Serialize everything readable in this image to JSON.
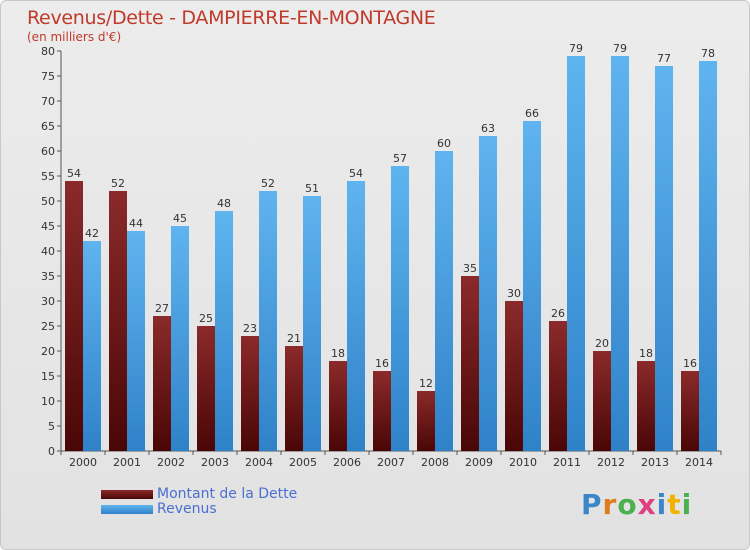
{
  "header": {
    "title": "Revenus/Dette - DAMPIERRE-EN-MONTAGNE",
    "subtitle": "(en milliers d'€)"
  },
  "legend": {
    "items": [
      {
        "label": "Montant de la Dette",
        "color": "#7a1a1a"
      },
      {
        "label": "Revenus",
        "color": "#4ea6e6"
      }
    ]
  },
  "logo": {
    "text": "Proxiti",
    "colors": [
      "#3a86c8",
      "#e07b1f",
      "#4caf50",
      "#e04080",
      "#3a86c8",
      "#f0b400",
      "#4caf50"
    ]
  },
  "chart_data": {
    "type": "bar",
    "title": "Revenus/Dette - DAMPIERRE-EN-MONTAGNE",
    "subtitle": "(en milliers d'€)",
    "xlabel": "",
    "ylabel": "",
    "ylim": [
      0,
      80
    ],
    "yticks": [
      0,
      5,
      10,
      15,
      20,
      25,
      30,
      35,
      40,
      45,
      50,
      55,
      60,
      65,
      70,
      75,
      80
    ],
    "grid": false,
    "legend_position": "bottom-left",
    "categories": [
      "2000",
      "2001",
      "2002",
      "2003",
      "2004",
      "2005",
      "2006",
      "2007",
      "2008",
      "2009",
      "2010",
      "2011",
      "2012",
      "2013",
      "2014"
    ],
    "series": [
      {
        "name": "Montant de la Dette",
        "color": "#7a1a1a",
        "values": [
          54,
          52,
          27,
          25,
          23,
          21,
          18,
          16,
          12,
          35,
          30,
          26,
          20,
          18,
          16
        ]
      },
      {
        "name": "Revenus",
        "color": "#4ea6e6",
        "values": [
          42,
          44,
          45,
          48,
          52,
          51,
          54,
          57,
          60,
          63,
          66,
          79,
          79,
          77,
          78
        ]
      }
    ]
  }
}
